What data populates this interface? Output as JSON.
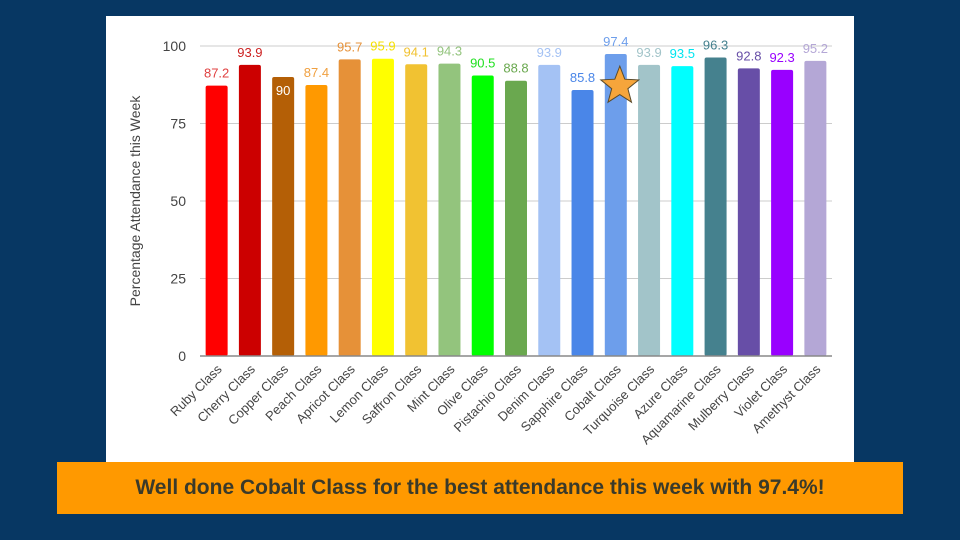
{
  "banner": {
    "text": "Well done Cobalt Class for the best attendance this week with 97.4%!",
    "background": "#ff9900"
  },
  "colors": {
    "background": "#073763",
    "panel": "#ffffff",
    "gridline": "#cccccc",
    "axis_text": "#444444",
    "star_fill": "#f6a53b",
    "star_stroke": "#5a4a2a"
  },
  "chart_data": {
    "type": "bar",
    "title": "",
    "xlabel": "",
    "ylabel": "Percentage Attendance this Week",
    "ylim": [
      0,
      100
    ],
    "yticks": [
      0,
      25,
      50,
      75,
      100
    ],
    "grid": true,
    "legend": "none",
    "highlight": {
      "category": "Cobalt Class",
      "marker": "star"
    },
    "categories": [
      "Ruby Class",
      "Cherry Class",
      "Copper Class",
      "Peach Class",
      "Apricot Class",
      "Lemon Class",
      "Saffron Class",
      "Mint Class",
      "Olive Class",
      "Pistachio Class",
      "Denim Class",
      "Sapphire Class",
      "Cobalt Class",
      "Turquoise Class",
      "Azure Class",
      "Aquamarine Class",
      "Mulberry Class",
      "Violet Class",
      "Amethyst Class"
    ],
    "values": [
      87.2,
      93.9,
      90,
      87.4,
      95.7,
      95.9,
      94.1,
      94.3,
      90.5,
      88.8,
      93.9,
      85.8,
      97.4,
      93.9,
      93.5,
      96.3,
      92.8,
      92.3,
      95.2
    ],
    "value_labels": [
      "87.2",
      "93.9",
      "90",
      "87.4",
      "95.7",
      "95.9",
      "94.1",
      "94.3",
      "90.5",
      "88.8",
      "93.9",
      "85.8",
      "97.4",
      "93.9",
      "93.5",
      "96.3",
      "92.8",
      "92.3",
      "95.2"
    ],
    "bar_colors": [
      "#ff0000",
      "#cc0000",
      "#b45f06",
      "#ff9900",
      "#e69138",
      "#ffff00",
      "#f1c232",
      "#93c47d",
      "#00ff00",
      "#6aa84f",
      "#a4c2f4",
      "#4a86e8",
      "#6d9eeb",
      "#a2c4c9",
      "#00ffff",
      "#45818e",
      "#674ea7",
      "#9900ff",
      "#b4a7d6"
    ],
    "label_colors": [
      "#e04040",
      "#cc2020",
      "#ffffff",
      "#f0a040",
      "#e69138",
      "#f5e000",
      "#f1c232",
      "#93c47d",
      "#20e020",
      "#6aa84f",
      "#a4c2f4",
      "#4a86e8",
      "#6d9eeb",
      "#a2c4c9",
      "#00e5f0",
      "#45818e",
      "#674ea7",
      "#9900ff",
      "#b4a7d6"
    ],
    "label_inside": [
      false,
      false,
      true,
      false,
      false,
      false,
      false,
      false,
      false,
      false,
      false,
      false,
      false,
      false,
      false,
      false,
      false,
      false,
      false
    ]
  }
}
